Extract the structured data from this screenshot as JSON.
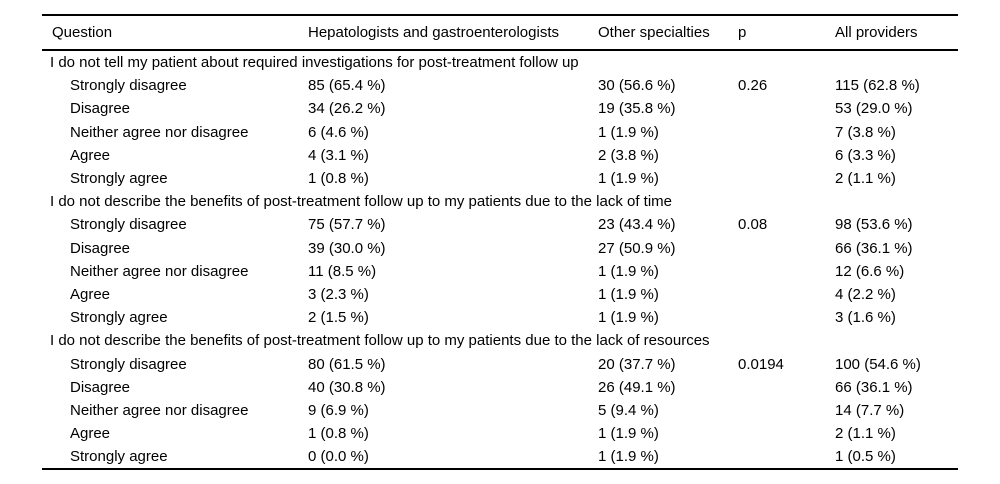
{
  "page": {
    "background": "#ffffff",
    "text_color": "#000000",
    "rule_color": "#000000"
  },
  "table": {
    "header": {
      "question": "Question",
      "hepatologists": "Hepatologists and gastroenterologists",
      "other": "Other specialties",
      "p": "p",
      "all": "All providers"
    },
    "sections": [
      {
        "question": "I do not tell my patient about required investigations for post-treatment follow up",
        "rows": [
          {
            "cells": [
              "Strongly disagree",
              "85 (65.4 %)",
              "30 (56.6 %)",
              "0.26",
              "115 (62.8 %)"
            ]
          },
          {
            "cells": [
              "Disagree",
              "34 (26.2 %)",
              "19 (35.8 %)",
              "",
              "53 (29.0 %)"
            ]
          },
          {
            "cells": [
              "Neither agree nor disagree",
              "6 (4.6 %)",
              "1 (1.9 %)",
              "",
              "7 (3.8 %)"
            ]
          },
          {
            "cells": [
              "Agree",
              "4 (3.1 %)",
              "2 (3.8 %)",
              "",
              "6 (3.3 %)"
            ]
          },
          {
            "cells": [
              "Strongly agree",
              "1 (0.8 %)",
              "1 (1.9 %)",
              "",
              "2 (1.1 %)"
            ]
          }
        ]
      },
      {
        "question": "I do not describe the benefits of post-treatment follow up to my patients due to the lack of time",
        "rows": [
          {
            "cells": [
              "Strongly disagree",
              "75 (57.7 %)",
              "23 (43.4 %)",
              "0.08",
              "98 (53.6 %)"
            ]
          },
          {
            "cells": [
              "Disagree",
              "39 (30.0 %)",
              "27 (50.9 %)",
              "",
              "66 (36.1 %)"
            ]
          },
          {
            "cells": [
              "Neither agree nor disagree",
              "11 (8.5 %)",
              "1 (1.9 %)",
              "",
              "12 (6.6 %)"
            ]
          },
          {
            "cells": [
              "Agree",
              "3 (2.3 %)",
              "1 (1.9 %)",
              "",
              "4 (2.2 %)"
            ]
          },
          {
            "cells": [
              "Strongly agree",
              "2 (1.5 %)",
              "1 (1.9 %)",
              "",
              "3 (1.6 %)"
            ]
          }
        ]
      },
      {
        "question": "I do not describe the benefits of post-treatment follow up to my patients due to the lack of resources",
        "rows": [
          {
            "cells": [
              "Strongly disagree",
              "80 (61.5 %)",
              "20 (37.7 %)",
              "0.0194",
              "100 (54.6 %)"
            ]
          },
          {
            "cells": [
              "Disagree",
              "40 (30.8 %)",
              "26 (49.1 %)",
              "",
              "66 (36.1 %)"
            ]
          },
          {
            "cells": [
              "Neither agree nor disagree",
              "9 (6.9 %)",
              "5 (9.4 %)",
              "",
              "14 (7.7 %)"
            ]
          },
          {
            "cells": [
              "Agree",
              "1 (0.8 %)",
              "1 (1.9 %)",
              "",
              "2 (1.1 %)"
            ]
          },
          {
            "cells": [
              "Strongly agree",
              "0 (0.0 %)",
              "1 (1.9 %)",
              "",
              "1 (0.5 %)"
            ]
          }
        ]
      }
    ]
  }
}
